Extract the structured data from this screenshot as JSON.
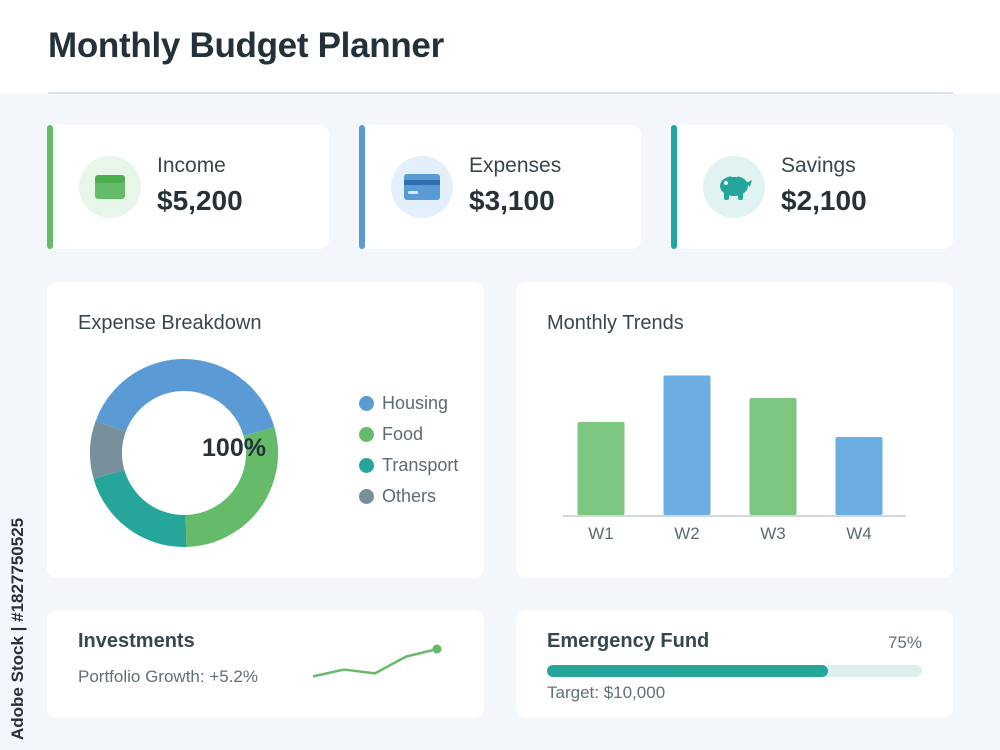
{
  "page": {
    "title": "Monthly Budget Planner"
  },
  "stats": [
    {
      "label": "Income",
      "value": "$5,200",
      "icon": "wallet-icon",
      "accent": "#66bb6a",
      "icon_bg": "#e8f5e9"
    },
    {
      "label": "Expenses",
      "value": "$3,100",
      "icon": "credit-card-icon",
      "accent": "#5b9bd5",
      "icon_bg": "#e3f0fb"
    },
    {
      "label": "Savings",
      "value": "$2,100",
      "icon": "piggy-bank-icon",
      "accent": "#26a69a",
      "icon_bg": "#e0f2f1"
    }
  ],
  "expense_breakdown": {
    "title": "Expense Breakdown",
    "center_label": "100%",
    "legend": [
      {
        "label": "Housing",
        "color": "#5b9bd5"
      },
      {
        "label": "Food",
        "color": "#66bb6a"
      },
      {
        "label": "Transport",
        "color": "#26a69a"
      },
      {
        "label": "Others",
        "color": "#78909c"
      }
    ]
  },
  "monthly_trends": {
    "title": "Monthly Trends"
  },
  "chart_data": [
    {
      "type": "pie",
      "title": "Expense Breakdown",
      "categories": [
        "Housing",
        "Food",
        "Transport",
        "Others"
      ],
      "values": [
        40,
        29,
        21,
        10
      ],
      "colors": [
        "#5b9bd5",
        "#66bb6a",
        "#26a69a",
        "#78909c"
      ],
      "legend": "right"
    },
    {
      "type": "bar",
      "title": "Monthly Trends",
      "categories": [
        "W1",
        "W2",
        "W3",
        "W4"
      ],
      "values": [
        62,
        93,
        78,
        52
      ],
      "colors": [
        "#7dc67f",
        "#6aaee2",
        "#7dc67f",
        "#6aaee2"
      ],
      "ylim": [
        0,
        100
      ],
      "grid": false
    }
  ],
  "investments": {
    "title": "Investments",
    "subtitle": "Portfolio Growth: +5.2%",
    "sparkline": [
      20,
      38,
      28,
      72,
      92
    ],
    "color": "#66bb6a"
  },
  "emergency_fund": {
    "title": "Emergency Fund",
    "percent_label": "75%",
    "progress": 0.75,
    "target": "Target: $10,000"
  },
  "watermark": "Adobe Stock | #1827750525"
}
